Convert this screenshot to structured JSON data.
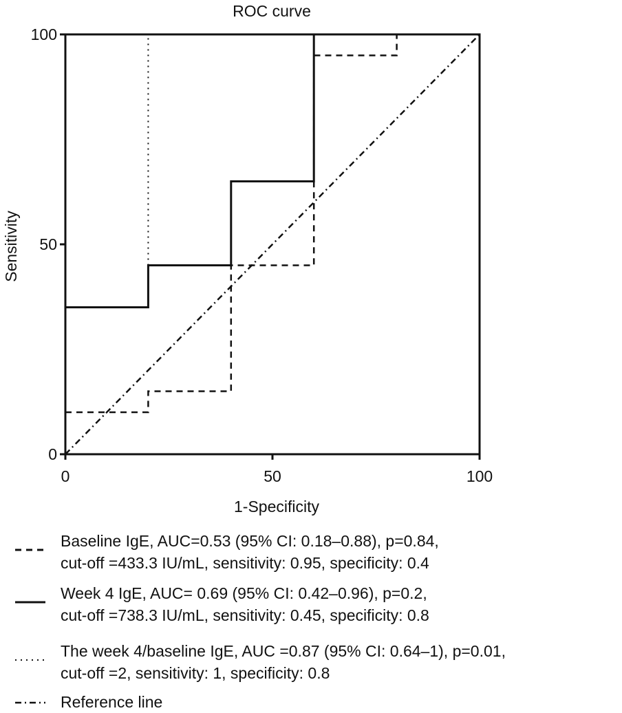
{
  "chart_data": {
    "type": "line",
    "title": "ROC curve",
    "xlabel": "1-Specificity",
    "ylabel": "Sensitivity",
    "xlim": [
      0,
      100
    ],
    "ylim": [
      0,
      100
    ],
    "xticks": [
      "0",
      "50",
      "100"
    ],
    "yticks": [
      "0",
      "50",
      "100"
    ],
    "grid": false,
    "legend_position": "bottom",
    "series": [
      {
        "name": "Baseline IgE",
        "style": "dashed",
        "x": [
          0,
          20,
          20,
          40,
          40,
          60,
          60,
          80,
          80
        ],
        "y": [
          10,
          10,
          15,
          15,
          45,
          45,
          95,
          95,
          100
        ]
      },
      {
        "name": "Week 4 IgE",
        "style": "solid",
        "x": [
          0,
          20,
          20,
          40,
          40,
          60,
          60,
          100
        ],
        "y": [
          35,
          35,
          45,
          45,
          65,
          65,
          100,
          100
        ]
      },
      {
        "name": "The week 4/baseline IgE",
        "style": "dotted",
        "x": [
          20,
          20
        ],
        "y": [
          45,
          100
        ]
      },
      {
        "name": "Reference line",
        "style": "dashdot",
        "x": [
          0,
          100
        ],
        "y": [
          0,
          100
        ]
      }
    ]
  },
  "legend": [
    {
      "style": "dashed",
      "line1": "Baseline IgE, AUC=0.53 (95% CI: 0.18–0.88), p=0.84,",
      "line2": "cut-off =433.3 IU/mL, sensitivity: 0.95, specificity: 0.4"
    },
    {
      "style": "solid",
      "line1": "Week 4 IgE, AUC= 0.69 (95% CI: 0.42–0.96), p=0.2,",
      "line2": "cut-off =738.3 IU/mL, sensitivity: 0.45, specificity: 0.8"
    },
    {
      "style": "dotted",
      "line1": "The week 4/baseline IgE, AUC =0.87 (95% CI: 0.64–1), p=0.01,",
      "line2": "cut-off =2, sensitivity: 1, specificity: 0.8"
    },
    {
      "style": "dashdot",
      "line1": "Reference line",
      "line2": ""
    }
  ]
}
